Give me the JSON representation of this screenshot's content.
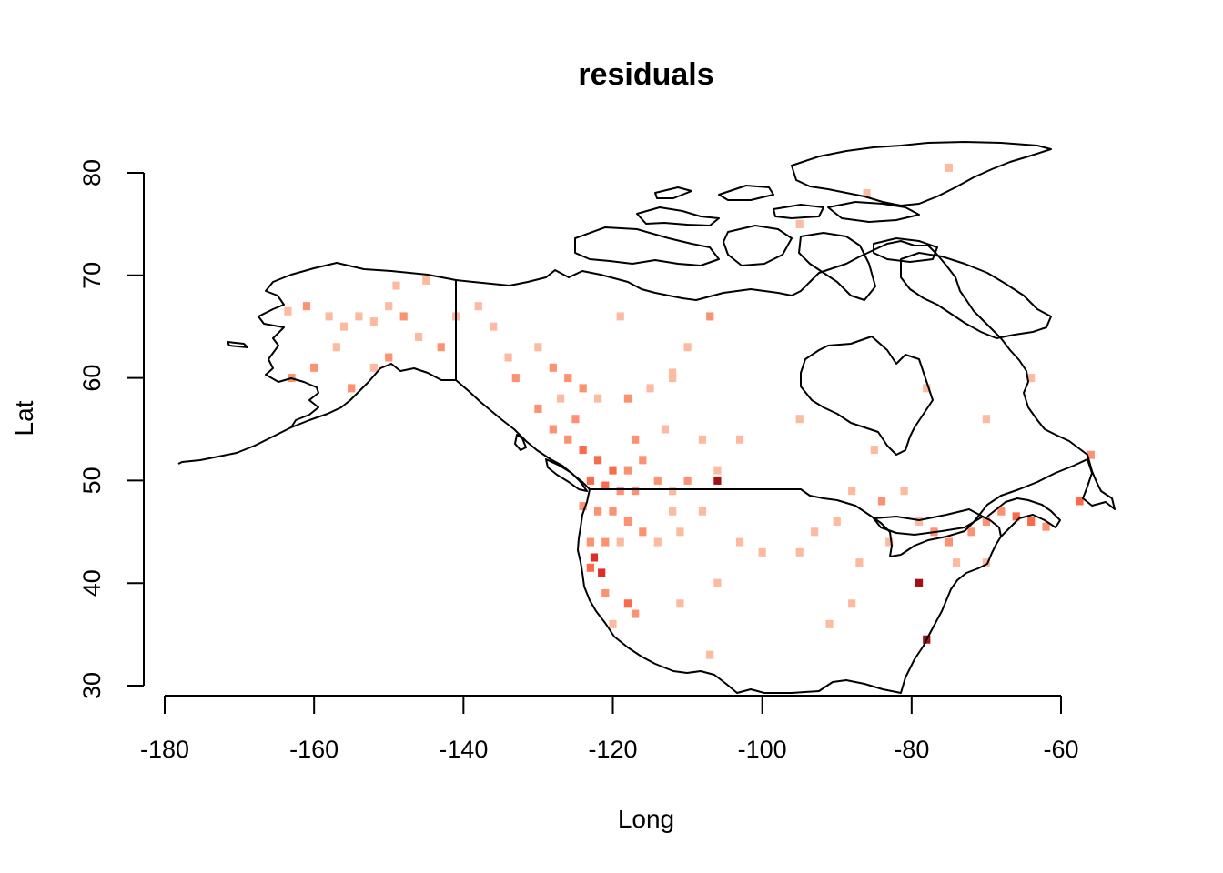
{
  "chart_data": {
    "type": "heatmap",
    "title": "residuals",
    "xlabel": "Long",
    "ylabel": "Lat",
    "xlim": [
      -182,
      -59
    ],
    "ylim": [
      28.5,
      82.5
    ],
    "xticks": [
      -180,
      -160,
      -140,
      -120,
      -100,
      -80,
      -60
    ],
    "yticks": [
      30,
      40,
      50,
      60,
      70,
      80
    ],
    "xtick_labels": [
      "-180",
      "-160",
      "-140",
      "-120",
      "-100",
      "-80",
      "-60"
    ],
    "ytick_labels": [
      "30",
      "40",
      "50",
      "60",
      "70",
      "80"
    ],
    "color_scale": [
      "#fde4d8",
      "#fcbba1",
      "#fc9272",
      "#fb6a4a",
      "#de2d26",
      "#a50f15"
    ],
    "cells": [
      {
        "lon": -163.5,
        "lat": 66.5,
        "v": 1
      },
      {
        "lon": -161,
        "lat": 67,
        "v": 2
      },
      {
        "lon": -158,
        "lat": 66,
        "v": 1
      },
      {
        "lon": -156,
        "lat": 65,
        "v": 1
      },
      {
        "lon": -154,
        "lat": 66,
        "v": 1
      },
      {
        "lon": -152,
        "lat": 65.5,
        "v": 1
      },
      {
        "lon": -150,
        "lat": 67,
        "v": 1
      },
      {
        "lon": -148,
        "lat": 66,
        "v": 2
      },
      {
        "lon": -146,
        "lat": 64,
        "v": 1
      },
      {
        "lon": -143,
        "lat": 63,
        "v": 2
      },
      {
        "lon": -150,
        "lat": 62,
        "v": 2
      },
      {
        "lon": -152,
        "lat": 61,
        "v": 1
      },
      {
        "lon": -160,
        "lat": 61,
        "v": 2
      },
      {
        "lon": -163,
        "lat": 60,
        "v": 2
      },
      {
        "lon": -155,
        "lat": 59,
        "v": 2
      },
      {
        "lon": -157,
        "lat": 63,
        "v": 1
      },
      {
        "lon": -149,
        "lat": 69,
        "v": 1
      },
      {
        "lon": -145,
        "lat": 69.5,
        "v": 1
      },
      {
        "lon": -138,
        "lat": 67,
        "v": 1
      },
      {
        "lon": -136,
        "lat": 65,
        "v": 1
      },
      {
        "lon": -134,
        "lat": 62,
        "v": 1
      },
      {
        "lon": -133,
        "lat": 60,
        "v": 2
      },
      {
        "lon": -130,
        "lat": 63,
        "v": 1
      },
      {
        "lon": -128,
        "lat": 61,
        "v": 2
      },
      {
        "lon": -126,
        "lat": 60,
        "v": 2
      },
      {
        "lon": -124,
        "lat": 59,
        "v": 2
      },
      {
        "lon": -122,
        "lat": 58,
        "v": 1
      },
      {
        "lon": -118,
        "lat": 58,
        "v": 2
      },
      {
        "lon": -115,
        "lat": 59,
        "v": 1
      },
      {
        "lon": -112,
        "lat": 60,
        "v": 1
      },
      {
        "lon": -110,
        "lat": 63,
        "v": 1
      },
      {
        "lon": -107,
        "lat": 66,
        "v": 2
      },
      {
        "lon": -119,
        "lat": 66,
        "v": 1
      },
      {
        "lon": -130,
        "lat": 57,
        "v": 2
      },
      {
        "lon": -128,
        "lat": 55,
        "v": 2
      },
      {
        "lon": -126,
        "lat": 54,
        "v": 2
      },
      {
        "lon": -124,
        "lat": 53,
        "v": 3
      },
      {
        "lon": -122,
        "lat": 52,
        "v": 3
      },
      {
        "lon": -120,
        "lat": 51,
        "v": 3
      },
      {
        "lon": -118,
        "lat": 51,
        "v": 2
      },
      {
        "lon": -116,
        "lat": 52,
        "v": 2
      },
      {
        "lon": -114,
        "lat": 50,
        "v": 2
      },
      {
        "lon": -112,
        "lat": 49,
        "v": 1
      },
      {
        "lon": -110,
        "lat": 50,
        "v": 2
      },
      {
        "lon": -106,
        "lat": 50,
        "v": 5
      },
      {
        "lon": -106,
        "lat": 51,
        "v": 1
      },
      {
        "lon": -123,
        "lat": 50,
        "v": 3
      },
      {
        "lon": -121,
        "lat": 49.5,
        "v": 3
      },
      {
        "lon": -119,
        "lat": 49,
        "v": 2
      },
      {
        "lon": -117,
        "lat": 49,
        "v": 2
      },
      {
        "lon": -124,
        "lat": 47.5,
        "v": 2
      },
      {
        "lon": -122,
        "lat": 47,
        "v": 2
      },
      {
        "lon": -120,
        "lat": 47,
        "v": 2
      },
      {
        "lon": -118,
        "lat": 46,
        "v": 2
      },
      {
        "lon": -116,
        "lat": 45,
        "v": 2
      },
      {
        "lon": -114,
        "lat": 44,
        "v": 1
      },
      {
        "lon": -111,
        "lat": 45,
        "v": 1
      },
      {
        "lon": -112,
        "lat": 47,
        "v": 1
      },
      {
        "lon": -108,
        "lat": 47,
        "v": 1
      },
      {
        "lon": -123,
        "lat": 44,
        "v": 2
      },
      {
        "lon": -121,
        "lat": 44,
        "v": 2
      },
      {
        "lon": -119,
        "lat": 44,
        "v": 1
      },
      {
        "lon": -122.5,
        "lat": 42.5,
        "v": 4
      },
      {
        "lon": -123,
        "lat": 41.5,
        "v": 3
      },
      {
        "lon": -121.5,
        "lat": 41,
        "v": 4
      },
      {
        "lon": -121,
        "lat": 39,
        "v": 2
      },
      {
        "lon": -118,
        "lat": 38,
        "v": 3
      },
      {
        "lon": -117,
        "lat": 37,
        "v": 2
      },
      {
        "lon": -120,
        "lat": 36,
        "v": 1
      },
      {
        "lon": -111,
        "lat": 38,
        "v": 1
      },
      {
        "lon": -107,
        "lat": 33,
        "v": 1
      },
      {
        "lon": -106,
        "lat": 40,
        "v": 1
      },
      {
        "lon": -103,
        "lat": 44,
        "v": 1
      },
      {
        "lon": -100,
        "lat": 43,
        "v": 1
      },
      {
        "lon": -95,
        "lat": 43,
        "v": 1
      },
      {
        "lon": -93,
        "lat": 45,
        "v": 1
      },
      {
        "lon": -90,
        "lat": 46,
        "v": 1
      },
      {
        "lon": -88,
        "lat": 49,
        "v": 1
      },
      {
        "lon": -95,
        "lat": 56,
        "v": 1
      },
      {
        "lon": -91,
        "lat": 36,
        "v": 1
      },
      {
        "lon": -88,
        "lat": 38,
        "v": 1
      },
      {
        "lon": -84,
        "lat": 48,
        "v": 2
      },
      {
        "lon": -81,
        "lat": 49,
        "v": 1
      },
      {
        "lon": -79,
        "lat": 46,
        "v": 1
      },
      {
        "lon": -77,
        "lat": 45,
        "v": 2
      },
      {
        "lon": -75,
        "lat": 44,
        "v": 2
      },
      {
        "lon": -72,
        "lat": 45,
        "v": 2
      },
      {
        "lon": -70,
        "lat": 46,
        "v": 2
      },
      {
        "lon": -74,
        "lat": 42,
        "v": 1
      },
      {
        "lon": -70,
        "lat": 42,
        "v": 1
      },
      {
        "lon": -79,
        "lat": 40,
        "v": 5
      },
      {
        "lon": -78,
        "lat": 34.5,
        "v": 5
      },
      {
        "lon": -68,
        "lat": 47,
        "v": 2
      },
      {
        "lon": -66,
        "lat": 46.5,
        "v": 3
      },
      {
        "lon": -64,
        "lat": 46,
        "v": 3
      },
      {
        "lon": -62,
        "lat": 45.5,
        "v": 2
      },
      {
        "lon": -57.5,
        "lat": 48,
        "v": 3
      },
      {
        "lon": -56,
        "lat": 52.5,
        "v": 2
      },
      {
        "lon": -85,
        "lat": 53,
        "v": 1
      },
      {
        "lon": -78,
        "lat": 59,
        "v": 1
      },
      {
        "lon": -70,
        "lat": 56,
        "v": 1
      },
      {
        "lon": -64,
        "lat": 60,
        "v": 1
      },
      {
        "lon": -112,
        "lat": 60.5,
        "v": 1
      },
      {
        "lon": -95,
        "lat": 75,
        "v": 1
      },
      {
        "lon": -86,
        "lat": 78,
        "v": 1
      },
      {
        "lon": -75,
        "lat": 80.5,
        "v": 1
      },
      {
        "lon": -141,
        "lat": 66,
        "v": 1
      },
      {
        "lon": -127,
        "lat": 58,
        "v": 1
      },
      {
        "lon": -125,
        "lat": 56,
        "v": 2
      },
      {
        "lon": -117,
        "lat": 54,
        "v": 2
      },
      {
        "lon": -113,
        "lat": 55,
        "v": 1
      },
      {
        "lon": -108,
        "lat": 54,
        "v": 1
      },
      {
        "lon": -103,
        "lat": 54,
        "v": 1
      },
      {
        "lon": -83,
        "lat": 44,
        "v": 1
      },
      {
        "lon": -87,
        "lat": 42,
        "v": 1
      }
    ]
  }
}
